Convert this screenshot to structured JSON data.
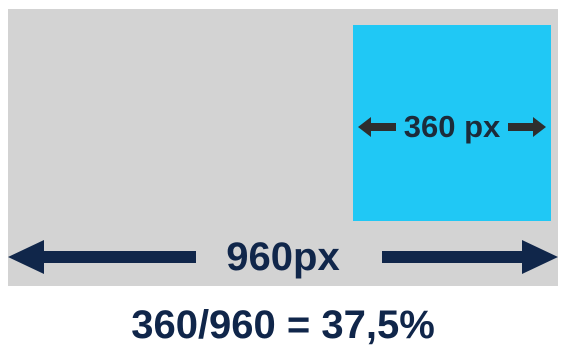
{
  "diagram": {
    "column_width_label": "360 px",
    "container_width_label": "960px",
    "formula": "360/960 = 37,5%",
    "colors": {
      "container": "#d3d3d3",
      "column": "#20c8f5",
      "arrow_dark": "#10264a",
      "arrow_small": "#2e2e2e"
    },
    "icons": {
      "small_arrow_left": "arrow-left-icon",
      "small_arrow_right": "arrow-right-icon",
      "large_arrow_left": "arrow-left-icon",
      "large_arrow_right": "arrow-right-icon"
    }
  }
}
